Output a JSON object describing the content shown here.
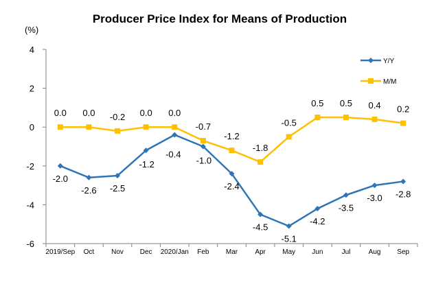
{
  "chart_data": {
    "type": "line",
    "title": "Producer Price Index for Means of Production",
    "unit_label": "(%)",
    "categories": [
      "2019/Sep",
      "Oct",
      "Nov",
      "Dec",
      "2020/Jan",
      "Feb",
      "Mar",
      "Apr",
      "May",
      "Jun",
      "Jul",
      "Aug",
      "Sep"
    ],
    "ylim": [
      -6,
      4
    ],
    "yticks": [
      4,
      2,
      0,
      -2,
      -4,
      -6
    ],
    "grid": false,
    "legend_position": "top-right",
    "series": [
      {
        "name": "Y/Y",
        "color": "#2E75B6",
        "marker": "diamond",
        "values": [
          -2.0,
          -2.6,
          -2.5,
          -1.2,
          -0.4,
          -1.0,
          -2.4,
          -4.5,
          -5.1,
          -4.2,
          -3.5,
          -3.0,
          -2.8
        ],
        "labels": [
          "-2.0",
          "-2.6",
          "-2.5",
          "-1.2",
          "-0.4",
          "-1.0",
          "-2.4",
          "-4.5",
          "-5.1",
          "-4.2",
          "-3.5",
          "-3.0",
          "-2.8"
        ]
      },
      {
        "name": "M/M",
        "color": "#FFC000",
        "marker": "square",
        "values": [
          0.0,
          0.0,
          -0.2,
          0.0,
          0.0,
          -0.7,
          -1.2,
          -1.8,
          -0.5,
          0.5,
          0.5,
          0.4,
          0.2
        ],
        "labels": [
          "0.0",
          "0.0",
          "-0.2",
          "0.0",
          "0.0",
          "-0.7",
          "-1.2",
          "-1.8",
          "-0.5",
          "0.5",
          "0.5",
          "0.4",
          "0.2"
        ]
      }
    ]
  }
}
